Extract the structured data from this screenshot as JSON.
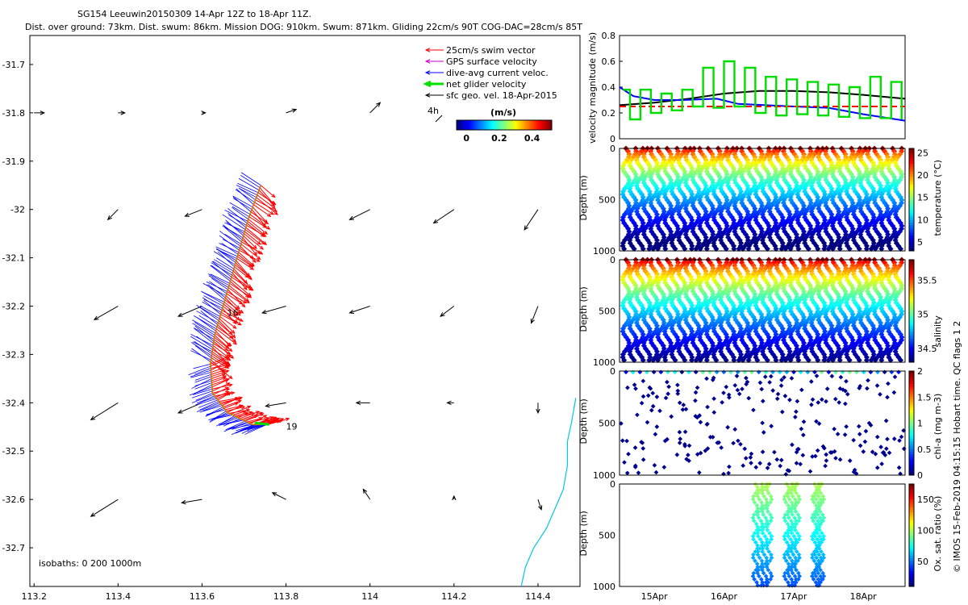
{
  "header": {
    "line1": "SG154 Leeuwin20150309 14-Apr 12Z to 18-Apr 11Z.",
    "line2": "Dist. over ground: 73km. Dist. swum: 86km. Mission DOG: 910km. Swum: 871km. Gliding 22cm/s 90T COG-DAC=28cm/s 85T"
  },
  "side_note": "© IMOS 15-Feb-2019 04:15:15 Hobart time. QC flags 1  2",
  "colors": {
    "swim": "#ff0000",
    "gps": "#cc00cc",
    "dac": "#0000ff",
    "net": "#00dd00",
    "sfc": "#000000",
    "coast": "#00c8e0",
    "track": "#d07800"
  },
  "chart_data": [
    {
      "id": "map",
      "type": "scatter",
      "title": "",
      "xlabel": "",
      "ylabel": "",
      "xlim": [
        113.19,
        114.5
      ],
      "ylim": [
        -32.78,
        -31.64
      ],
      "xticks": [
        "113.2",
        "113.4",
        "113.6",
        "113.8",
        "114",
        "114.2",
        "114.4"
      ],
      "yticks": [
        "-31.7",
        "-31.8",
        "-31.9",
        "-32",
        "-32.1",
        "-32.2",
        "-32.3",
        "-32.4",
        "-32.5",
        "-32.6",
        "-32.7"
      ],
      "legend": {
        "placement": "top-right",
        "items": [
          {
            "label": "25cm/s swim vector",
            "color": "#ff0000"
          },
          {
            "label": "GPS surface velocity",
            "color": "#cc00cc"
          },
          {
            "label": "dive-avg current veloc.",
            "color": "#0000ff"
          },
          {
            "label": "net glider velocity",
            "color": "#00dd00"
          },
          {
            "label": "sfc geo. vel. 18-Apr-2015",
            "color": "#000000"
          }
        ],
        "scale_label": "4h"
      },
      "colorbar": {
        "title": "(m/s)",
        "ticks": [
          "0",
          "0.2",
          "0.4"
        ],
        "range": [
          -0.06,
          0.52
        ]
      },
      "day_labels": [
        {
          "text": "16",
          "lon": 113.66,
          "lat": -32.22
        },
        {
          "text": "19",
          "lon": 113.8,
          "lat": -32.455
        }
      ],
      "isobath_label": "isobaths: 0   200  1000m",
      "track": [
        [
          113.74,
          -31.95
        ],
        [
          113.71,
          -32.02
        ],
        [
          113.69,
          -32.08
        ],
        [
          113.67,
          -32.14
        ],
        [
          113.65,
          -32.2
        ],
        [
          113.63,
          -32.26
        ],
        [
          113.62,
          -32.32
        ],
        [
          113.625,
          -32.38
        ],
        [
          113.66,
          -32.42
        ],
        [
          113.72,
          -32.445
        ],
        [
          113.76,
          -32.445
        ]
      ],
      "geo_vectors": [
        {
          "lon": 113.2,
          "lat": -31.8,
          "u": 0.03,
          "v": 0.0
        },
        {
          "lon": 113.4,
          "lat": -31.8,
          "u": 0.02,
          "v": 0.0
        },
        {
          "lon": 113.6,
          "lat": -31.8,
          "u": 0.01,
          "v": 0.0
        },
        {
          "lon": 113.8,
          "lat": -31.8,
          "u": 0.03,
          "v": 0.01
        },
        {
          "lon": 114.0,
          "lat": -31.8,
          "u": 0.03,
          "v": 0.03
        },
        {
          "lon": 113.4,
          "lat": -32.0,
          "u": -0.03,
          "v": -0.03
        },
        {
          "lon": 113.6,
          "lat": -32.0,
          "u": -0.05,
          "v": -0.02
        },
        {
          "lon": 114.0,
          "lat": -32.0,
          "u": -0.06,
          "v": -0.03
        },
        {
          "lon": 114.2,
          "lat": -32.0,
          "u": -0.06,
          "v": -0.04
        },
        {
          "lon": 114.4,
          "lat": -32.0,
          "u": -0.04,
          "v": -0.06
        },
        {
          "lon": 113.4,
          "lat": -32.2,
          "u": -0.07,
          "v": -0.04
        },
        {
          "lon": 113.6,
          "lat": -32.2,
          "u": -0.07,
          "v": -0.03
        },
        {
          "lon": 113.8,
          "lat": -32.2,
          "u": -0.07,
          "v": -0.02
        },
        {
          "lon": 114.0,
          "lat": -32.2,
          "u": -0.06,
          "v": -0.02
        },
        {
          "lon": 114.2,
          "lat": -32.2,
          "u": -0.04,
          "v": -0.03
        },
        {
          "lon": 114.4,
          "lat": -32.2,
          "u": -0.02,
          "v": -0.05
        },
        {
          "lon": 113.4,
          "lat": -32.4,
          "u": -0.08,
          "v": -0.05
        },
        {
          "lon": 113.6,
          "lat": -32.4,
          "u": -0.07,
          "v": -0.03
        },
        {
          "lon": 113.8,
          "lat": -32.4,
          "u": -0.06,
          "v": -0.01
        },
        {
          "lon": 114.0,
          "lat": -32.4,
          "u": -0.04,
          "v": 0.0
        },
        {
          "lon": 114.2,
          "lat": -32.4,
          "u": -0.02,
          "v": 0.0
        },
        {
          "lon": 114.4,
          "lat": -32.4,
          "u": 0.0,
          "v": -0.03
        },
        {
          "lon": 113.4,
          "lat": -32.6,
          "u": -0.08,
          "v": -0.05
        },
        {
          "lon": 113.6,
          "lat": -32.6,
          "u": -0.06,
          "v": -0.01
        },
        {
          "lon": 113.8,
          "lat": -32.6,
          "u": -0.04,
          "v": 0.02
        },
        {
          "lon": 114.0,
          "lat": -32.6,
          "u": -0.02,
          "v": 0.03
        },
        {
          "lon": 114.2,
          "lat": -32.6,
          "u": 0.0,
          "v": 0.01
        },
        {
          "lon": 114.4,
          "lat": -32.6,
          "u": 0.01,
          "v": -0.03
        }
      ],
      "coastline": [
        [
          114.49,
          -32.39
        ],
        [
          114.48,
          -32.44
        ],
        [
          114.47,
          -32.48
        ],
        [
          114.47,
          -32.53
        ],
        [
          114.46,
          -32.58
        ],
        [
          114.44,
          -32.62
        ],
        [
          114.42,
          -32.66
        ],
        [
          114.39,
          -32.7
        ],
        [
          114.37,
          -32.74
        ],
        [
          114.36,
          -32.78
        ]
      ]
    },
    {
      "id": "velocity",
      "type": "line",
      "ylabel": "velocity magnitude (m/s)",
      "ylim": [
        0,
        0.8
      ],
      "yticks": [
        "0",
        "0.2",
        "0.4",
        "0.6",
        "0.8"
      ],
      "xlim": [
        14.5,
        18.6
      ],
      "series": [
        {
          "name": "geostrophic (black)",
          "color": "#000000",
          "x": [
            14.5,
            15.0,
            15.5,
            16.0,
            16.5,
            17.0,
            17.5,
            18.0,
            18.6
          ],
          "y": [
            0.26,
            0.28,
            0.31,
            0.35,
            0.37,
            0.37,
            0.36,
            0.34,
            0.31
          ]
        },
        {
          "name": "dive-avg current (blue)",
          "color": "#0000ff",
          "x": [
            14.5,
            14.7,
            15.0,
            15.4,
            15.9,
            16.2,
            16.6,
            17.0,
            17.5,
            18.0,
            18.6
          ],
          "y": [
            0.4,
            0.33,
            0.3,
            0.3,
            0.31,
            0.27,
            0.26,
            0.25,
            0.24,
            0.19,
            0.14
          ]
        },
        {
          "name": "swim 25cm/s (red dashed)",
          "color": "#ff0000",
          "x": [
            14.5,
            18.6
          ],
          "y": [
            0.25,
            0.25
          ]
        },
        {
          "name": "net glider (green)",
          "color": "#00dd00",
          "x": [
            14.55,
            14.65,
            14.8,
            14.95,
            15.1,
            15.25,
            15.4,
            15.55,
            15.7,
            15.85,
            16.0,
            16.15,
            16.3,
            16.45,
            16.6,
            16.75,
            16.9,
            17.05,
            17.2,
            17.35,
            17.5,
            17.65,
            17.8,
            17.95,
            18.1,
            18.25,
            18.4,
            18.55
          ],
          "y": [
            0.38,
            0.15,
            0.38,
            0.2,
            0.35,
            0.22,
            0.38,
            0.25,
            0.55,
            0.24,
            0.6,
            0.25,
            0.55,
            0.2,
            0.48,
            0.18,
            0.46,
            0.19,
            0.44,
            0.18,
            0.42,
            0.17,
            0.4,
            0.16,
            0.48,
            0.16,
            0.44,
            0.15
          ]
        }
      ]
    },
    {
      "id": "temperature",
      "type": "scatter",
      "ylabel": "Depth (m)",
      "cbar_label": "temperature (°C)",
      "cbar_ticks": [
        "5",
        "10",
        "15",
        "20",
        "25"
      ],
      "crange": [
        3,
        26
      ],
      "ylim": [
        1000,
        0
      ],
      "yticks": [
        "0",
        "500",
        "1000"
      ],
      "profiles": 40
    },
    {
      "id": "salinity",
      "type": "scatter",
      "ylabel": "Depth (m)",
      "cbar_label": "salinity",
      "cbar_ticks": [
        "34.5",
        "35",
        "35.5"
      ],
      "crange": [
        34.3,
        35.8
      ],
      "ylim": [
        1000,
        0
      ],
      "yticks": [
        "0",
        "500",
        "1000"
      ],
      "profiles": 40
    },
    {
      "id": "chla",
      "type": "scatter",
      "ylabel": "Depth (m)",
      "cbar_label": "chl-a (mg m-3)",
      "cbar_ticks": [
        "0",
        "0.5",
        "1",
        "1.5",
        "2"
      ],
      "crange": [
        0,
        2
      ],
      "ylim": [
        1000,
        0
      ],
      "yticks": [
        "0",
        "500",
        "1000"
      ],
      "profiles": 40
    },
    {
      "id": "oxygen",
      "type": "scatter",
      "ylabel": "Depth (m)",
      "cbar_label": "Ox. sat. ratio (%)",
      "cbar_ticks": [
        "50",
        "100",
        "150"
      ],
      "crange": [
        10,
        175
      ],
      "ylim": [
        1000,
        0
      ],
      "yticks": [
        "0",
        "500",
        "1000"
      ],
      "xlim": [
        14.5,
        18.6
      ],
      "xticks": [
        {
          "v": 15,
          "label": "15Apr"
        },
        {
          "v": 16,
          "label": "16Apr"
        },
        {
          "v": 17,
          "label": "17Apr"
        },
        {
          "v": 18,
          "label": "18Apr"
        }
      ],
      "bursts": [
        {
          "x0": 16.45,
          "x1": 16.65
        },
        {
          "x0": 16.9,
          "x1": 17.05
        },
        {
          "x0": 17.3,
          "x1": 17.4
        }
      ]
    }
  ]
}
